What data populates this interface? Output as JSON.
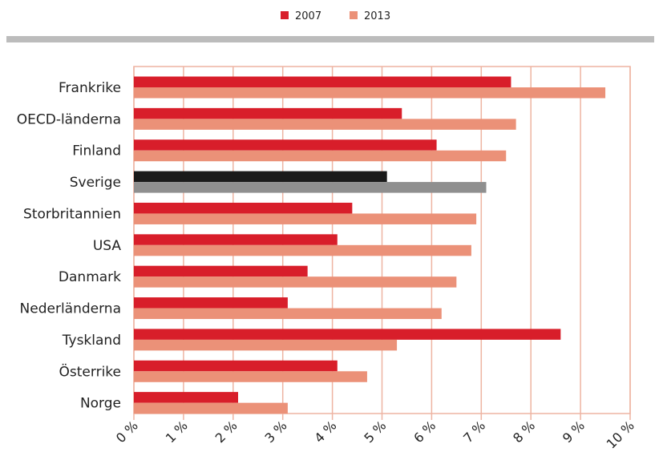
{
  "chart_data": {
    "type": "bar",
    "orientation": "horizontal",
    "categories": [
      "Frankrike",
      "OECD-länderna",
      "Finland",
      "Sverige",
      "Storbritannien",
      "USA",
      "Danmark",
      "Nederländerna",
      "Tyskland",
      "Österrike",
      "Norge"
    ],
    "series": [
      {
        "name": "2007",
        "values": [
          7.6,
          5.4,
          6.1,
          5.1,
          4.4,
          4.1,
          3.5,
          3.1,
          8.6,
          4.1,
          2.1
        ]
      },
      {
        "name": "2013",
        "values": [
          9.5,
          7.7,
          7.5,
          7.1,
          6.9,
          6.8,
          6.5,
          6.2,
          5.3,
          4.7,
          3.1
        ]
      }
    ],
    "xlim": [
      0,
      10
    ],
    "xticks": [
      0,
      1,
      2,
      3,
      4,
      5,
      6,
      7,
      8,
      9,
      10
    ],
    "xtick_labels": [
      "0 %",
      "1 %",
      "2 %",
      "3 %",
      "4 %",
      "5 %",
      "6 %",
      "7 %",
      "8 %",
      "9 %",
      "10 %"
    ],
    "grid": "vertical",
    "legend_position": "top-center",
    "highlight_category": "Sverige",
    "colors": {
      "series_2007": "#d81e2a",
      "series_2013": "#eb9178",
      "highlight_2007": "#1a1a1a",
      "highlight_2013": "#8f8f8f",
      "grid": "#eeb4a2",
      "separator": "#bcbcbc"
    }
  }
}
